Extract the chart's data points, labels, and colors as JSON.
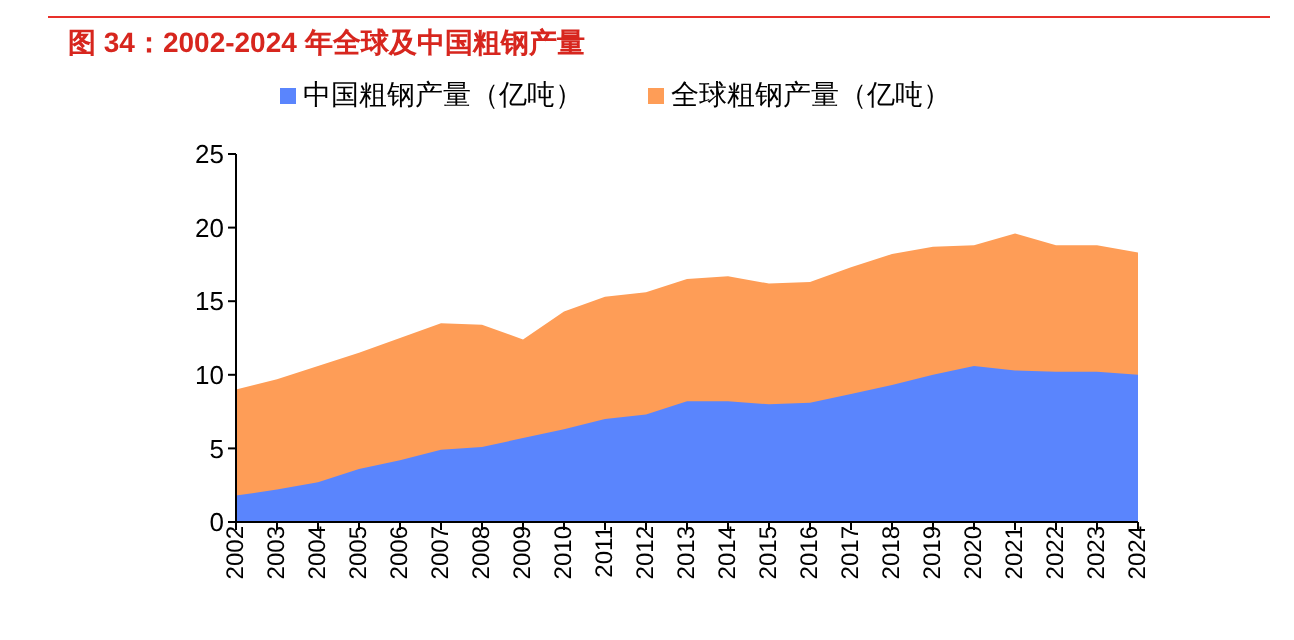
{
  "chart_data": {
    "type": "area",
    "title": "图 34：2002-2024 年全球及中国粗钢产量",
    "categories": [
      "2002",
      "2003",
      "2004",
      "2005",
      "2006",
      "2007",
      "2008",
      "2009",
      "2010",
      "2011",
      "2012",
      "2013",
      "2014",
      "2015",
      "2016",
      "2017",
      "2018",
      "2019",
      "2020",
      "2021",
      "2022",
      "2023",
      "2024"
    ],
    "series": [
      {
        "name": "全球粗钢产量（亿吨）",
        "color": "#fe9d57",
        "values": [
          9.0,
          9.7,
          10.6,
          11.5,
          12.5,
          13.5,
          13.4,
          12.4,
          14.3,
          15.3,
          15.6,
          16.5,
          16.7,
          16.2,
          16.3,
          17.3,
          18.2,
          18.7,
          18.8,
          19.6,
          18.8,
          18.8,
          18.3
        ]
      },
      {
        "name": "中国粗钢产量（亿吨）",
        "color": "#5a85fd",
        "values": [
          1.8,
          2.2,
          2.7,
          3.6,
          4.2,
          4.9,
          5.1,
          5.7,
          6.3,
          7.0,
          7.3,
          8.2,
          8.2,
          8.0,
          8.1,
          8.7,
          9.3,
          10.0,
          10.6,
          10.3,
          10.2,
          10.2,
          10.0
        ]
      }
    ],
    "ylim": [
      0,
      25
    ],
    "yticks": [
      0,
      5,
      10,
      15,
      20,
      25
    ],
    "grid": false,
    "legend": "top"
  }
}
